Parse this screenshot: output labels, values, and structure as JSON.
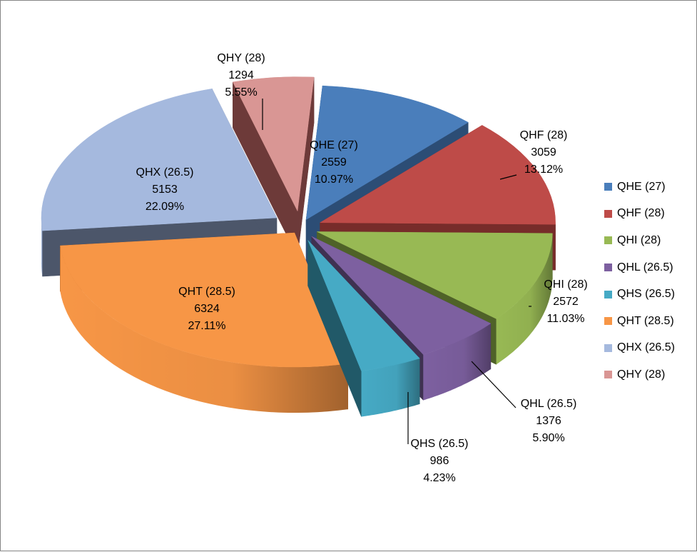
{
  "chart_data": {
    "type": "pie",
    "title": "",
    "legend_position": "right",
    "slices": [
      {
        "name": "QHE (27)",
        "value": 2559,
        "percent": "10.97%",
        "color": "#4a7ebb",
        "side": "#2c4d75"
      },
      {
        "name": "QHF (28)",
        "value": 3059,
        "percent": "13.12%",
        "color": "#be4b48",
        "side": "#772c2a"
      },
      {
        "name": "QHI (28)",
        "value": 2572,
        "percent": "11.03%",
        "color": "#98b954",
        "side": "#4f6228"
      },
      {
        "name": "QHL (26.5)",
        "value": 1376,
        "percent": "5.90%",
        "color": "#7d60a0",
        "side": "#3f3151"
      },
      {
        "name": "QHS (26.5)",
        "value": 986,
        "percent": "4.23%",
        "color": "#46aac5",
        "side": "#215968"
      },
      {
        "name": "QHT (28.5)",
        "value": 6324,
        "percent": "27.11%",
        "color": "#f79646",
        "side": "#984807"
      },
      {
        "name": "QHX (26.5)",
        "value": 5153,
        "percent": "22.09%",
        "color": "#a5b9de",
        "side": "#4c566a"
      },
      {
        "name": "QHY (28)",
        "value": 1294,
        "percent": "5.55%",
        "color": "#d99694",
        "side": "#6d3a39"
      }
    ]
  }
}
